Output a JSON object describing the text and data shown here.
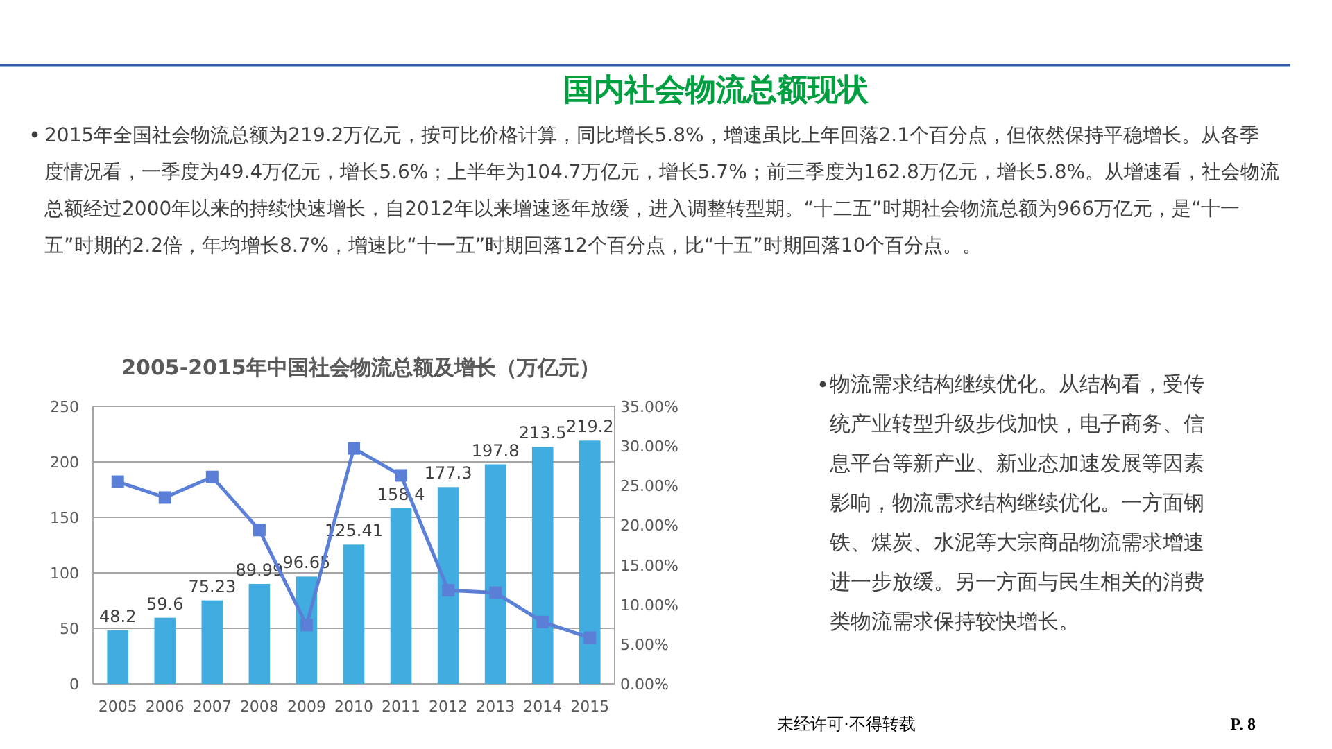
{
  "chart_data": {
    "type": "bar",
    "title": "2005-2015年中国社会物流总额及增长（万亿元）",
    "categories": [
      "2005",
      "2006",
      "2007",
      "2008",
      "2009",
      "2010",
      "2011",
      "2012",
      "2013",
      "2014",
      "2015"
    ],
    "series": [
      {
        "color": "#41acdf",
        "values": [
          48.2,
          59.6,
          75.23,
          89.99,
          96.65,
          125.41,
          158.4,
          177.3,
          197.8,
          213.5,
          219.2
        ],
        "value_labels": [
          "48.2",
          "59.6",
          "75.23",
          "89.99",
          "96.65",
          "125.41",
          "158.4",
          "177.3",
          "197.8",
          "213.5",
          "219.2"
        ]
      },
      {
        "type": "line",
        "axis": "y2",
        "color": "#5b7fd6",
        "marker": "square",
        "values": [
          25.5,
          23.5,
          26.1,
          19.4,
          7.4,
          29.7,
          26.3,
          11.8,
          11.5,
          7.8,
          5.8
        ]
      }
    ],
    "ylim": [
      0,
      250
    ],
    "yticks": [
      0,
      50,
      100,
      150,
      200,
      250
    ],
    "y2lim": [
      0,
      35
    ],
    "y2ticks": [
      {
        "value": 0,
        "label": "0.00%"
      },
      {
        "value": 5,
        "label": "5.00%"
      },
      {
        "value": 10,
        "label": "10.00%"
      },
      {
        "value": 15,
        "label": "15.00%"
      },
      {
        "value": 20,
        "label": "20.00%"
      },
      {
        "value": 25,
        "label": "25.00%"
      },
      {
        "value": 30,
        "label": "30.00%"
      },
      {
        "value": 35,
        "label": "35.00%"
      }
    ],
    "grid": "y",
    "annotations": [
      "国内社会物流总额现状",
      "2015年全国社会物流总额为219.2万亿元，按可比价格计算，同比增长5.8%，增速虽比上年回落2.1个百分点，但依然保持平稳增长。从各季度情况看，一季度为49.4万亿元，增长5.6%；上半年为104.7万亿元，增长5.7%；前三季度为162.8万亿元，增长5.8%。从增速看，社会物流总额经过2000年以来的持续快速增长，自2012年以来增速逐年放缓，进入调整转型期。“十二五”时期社会物流总额为966万亿元，是“十一五”时期的2.2倍，年均增长8.7%，增速比“十一五”时期回落12个百分点，比“十五”时期回落10个百分点。。",
      "物流需求结构继续优化。从结构看，受传统产业转型升级步伐加快，电子商务、信息平台等新产业、新业态加速发展等因素影响，物流需求结构继续优化。一方面钢铁、煤炭、水泥等大宗商品物流需求增速进一步放缓。另一方面与民生相关的消费类物流需求保持较快增长。",
      "未经许可·不得转载",
      "P. 8"
    ]
  }
}
